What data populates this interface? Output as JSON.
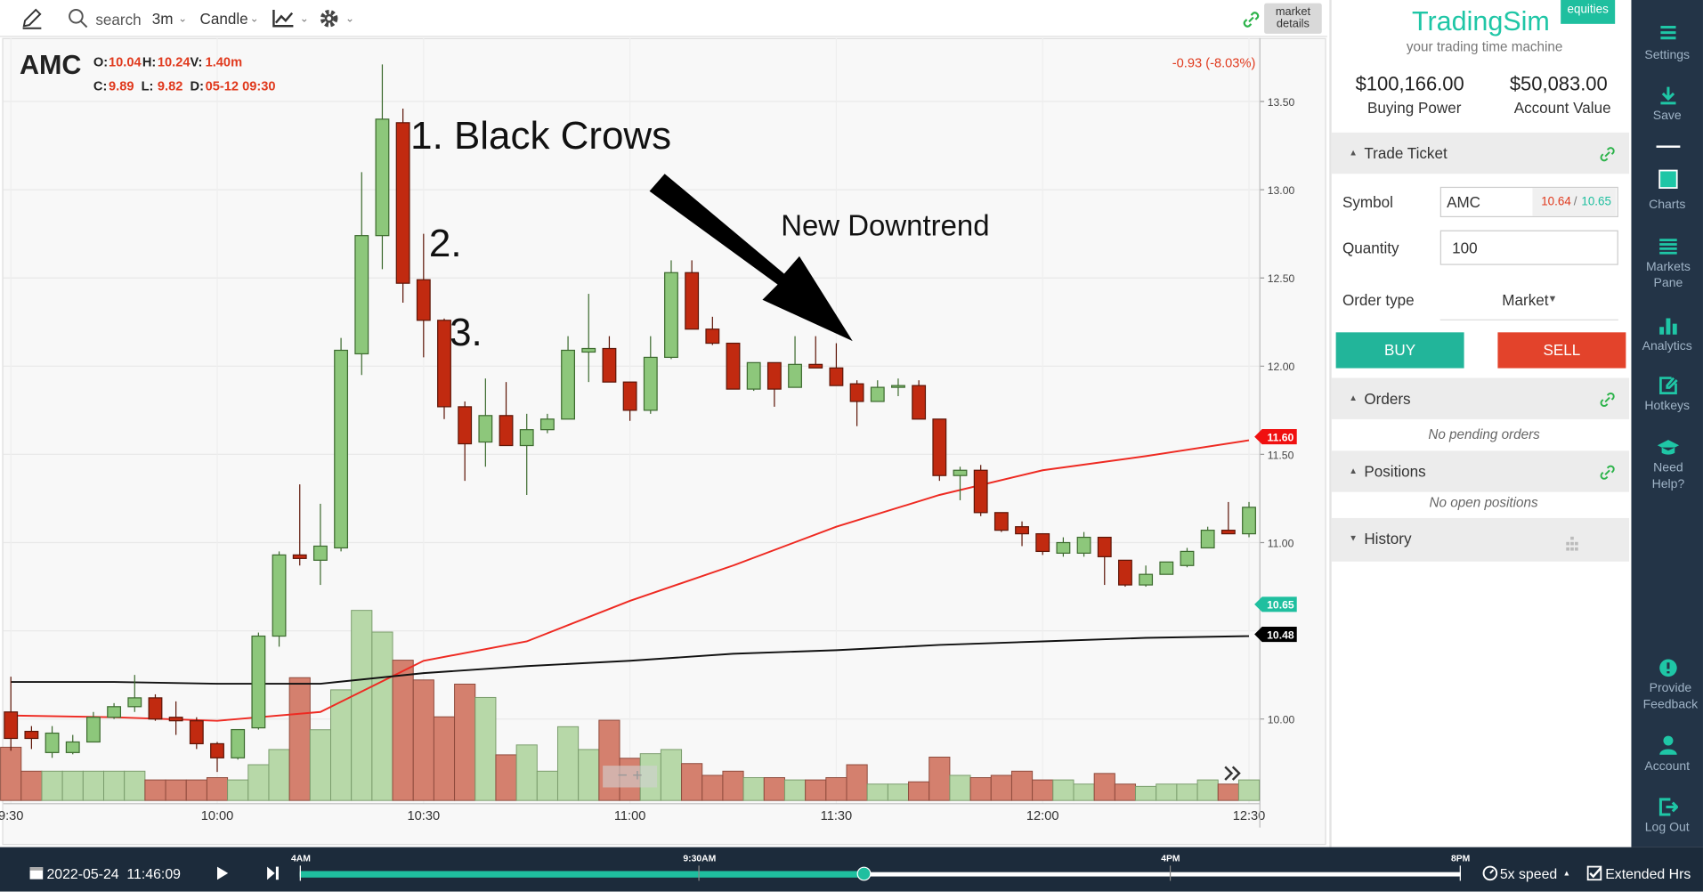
{
  "toolbar": {
    "search": "search",
    "interval": "3m",
    "chart_style": "Candle",
    "market_details": "market details"
  },
  "chart_data": {
    "type": "candlestick",
    "symbol": "AMC",
    "header": {
      "open_label": "O:",
      "high_label": "H:",
      "volume_label": "V:",
      "volume": "1.40m",
      "close_label": "C:",
      "low_label": "L:",
      "date_label": "D:",
      "date": "05-12 09:30"
    },
    "change": "-0.93 (-8.03%)",
    "annotations": [
      "1. Black Crows",
      "2.",
      "3.",
      "New Downtrend"
    ],
    "categories": [
      "09:30",
      "09:33",
      "09:36",
      "09:39",
      "09:42",
      "09:45",
      "09:48",
      "09:51",
      "09:54",
      "09:57",
      "10:00",
      "10:03",
      "10:06",
      "10:09",
      "10:12",
      "10:15",
      "10:18",
      "10:21",
      "10:24",
      "10:27",
      "10:30",
      "10:33",
      "10:36",
      "10:39",
      "10:42",
      "10:45",
      "10:48",
      "10:51",
      "10:54",
      "10:57",
      "11:00",
      "11:03",
      "11:06",
      "11:09",
      "11:12",
      "11:15",
      "11:18",
      "11:21",
      "11:24",
      "11:27",
      "11:30",
      "11:33",
      "11:36",
      "11:39",
      "11:42",
      "11:45",
      "11:48",
      "11:51",
      "11:54",
      "11:57",
      "12:00",
      "12:03",
      "12:06",
      "12:09",
      "12:12",
      "12:15",
      "12:18",
      "12:21",
      "12:24",
      "12:27",
      "12:30"
    ],
    "open": [
      10.04,
      9.93,
      9.81,
      9.81,
      9.87,
      10.01,
      10.07,
      10.12,
      10.01,
      9.99,
      9.86,
      9.78,
      9.95,
      10.47,
      10.93,
      10.9,
      10.97,
      12.07,
      12.74,
      13.38,
      12.49,
      12.26,
      11.77,
      11.57,
      11.72,
      11.55,
      11.64,
      11.7,
      12.08,
      12.1,
      11.91,
      11.75,
      12.05,
      12.53,
      12.21,
      12.13,
      11.87,
      12.02,
      11.88,
      12.01,
      11.99,
      11.9,
      11.8,
      11.88,
      11.89,
      11.7,
      11.38,
      11.41,
      11.17,
      11.09,
      11.05,
      10.94,
      10.94,
      11.03,
      10.9,
      10.76,
      10.82,
      10.87,
      10.97,
      11.07,
      11.05
    ],
    "high": [
      10.24,
      9.96,
      9.96,
      9.91,
      10.04,
      10.09,
      10.25,
      10.14,
      10.1,
      10.01,
      9.87,
      9.94,
      10.49,
      10.95,
      11.33,
      11.22,
      12.16,
      13.1,
      13.71,
      13.46,
      12.75,
      12.27,
      11.8,
      11.93,
      11.91,
      11.73,
      11.73,
      12.17,
      12.41,
      12.17,
      11.91,
      12.17,
      12.6,
      12.6,
      12.28,
      12.13,
      12.02,
      12.02,
      12.17,
      12.17,
      12.13,
      11.92,
      11.92,
      11.93,
      11.92,
      11.7,
      11.43,
      11.44,
      11.17,
      11.12,
      11.05,
      11.03,
      11.06,
      11.03,
      10.9,
      10.87,
      10.89,
      10.97,
      11.09,
      11.23,
      11.23
    ],
    "low": [
      9.82,
      9.83,
      9.78,
      9.8,
      9.87,
      10.0,
      10.04,
      9.99,
      9.91,
      9.83,
      9.7,
      9.77,
      9.94,
      10.41,
      10.87,
      10.76,
      10.95,
      11.95,
      12.55,
      12.36,
      12.05,
      11.7,
      11.35,
      11.43,
      11.55,
      11.27,
      11.62,
      11.7,
      11.91,
      11.91,
      11.69,
      11.73,
      12.04,
      12.21,
      12.12,
      11.87,
      11.86,
      11.77,
      11.88,
      11.99,
      11.89,
      11.66,
      11.8,
      11.83,
      11.7,
      11.35,
      11.24,
      11.15,
      11.06,
      10.98,
      10.93,
      10.92,
      10.92,
      10.76,
      10.75,
      10.75,
      10.82,
      10.86,
      10.97,
      11.05,
      11.03
    ],
    "close": [
      9.89,
      9.89,
      9.92,
      9.87,
      10.01,
      10.07,
      10.12,
      10.0,
      9.99,
      9.86,
      9.78,
      9.94,
      10.47,
      10.93,
      10.91,
      10.98,
      12.09,
      12.74,
      13.4,
      12.47,
      12.26,
      11.77,
      11.56,
      11.72,
      11.55,
      11.64,
      11.7,
      12.09,
      12.1,
      11.91,
      11.75,
      12.05,
      12.53,
      12.21,
      12.13,
      11.87,
      12.02,
      11.87,
      12.01,
      11.99,
      11.89,
      11.8,
      11.88,
      11.89,
      11.7,
      11.38,
      11.41,
      11.17,
      11.07,
      11.05,
      10.95,
      11.0,
      11.03,
      10.92,
      10.76,
      10.82,
      10.89,
      10.95,
      11.07,
      11.05,
      11.2
    ],
    "volume": [
      1.4,
      0.77,
      0.77,
      0.77,
      0.77,
      0.77,
      0.77,
      0.54,
      0.54,
      0.54,
      0.6,
      0.54,
      0.94,
      1.34,
      3.23,
      1.86,
      2.91,
      5.0,
      4.43,
      3.69,
      3.17,
      2.2,
      3.06,
      2.71,
      1.2,
      1.46,
      0.77,
      1.94,
      1.34,
      2.11,
      1.11,
      1.23,
      1.34,
      0.97,
      0.66,
      0.77,
      0.6,
      0.6,
      0.54,
      0.54,
      0.6,
      0.94,
      0.43,
      0.43,
      0.49,
      1.14,
      0.66,
      0.6,
      0.66,
      0.77,
      0.54,
      0.54,
      0.43,
      0.71,
      0.43,
      0.37,
      0.43,
      0.43,
      0.54,
      0.43,
      0.54
    ],
    "up_color": "#8dc77b",
    "down_color": "#c12a10",
    "volume_up_color": "#b7d8a8",
    "volume_down_color": "#d4806e",
    "moving_averages": [
      {
        "color": "#ee2a22",
        "categories": [
          "09:30",
          "09:45",
          "10:00",
          "10:15",
          "10:30",
          "10:45",
          "11:00",
          "11:15",
          "11:30",
          "11:45",
          "12:00",
          "12:15",
          "12:30"
        ],
        "values": [
          10.02,
          10.01,
          9.99,
          10.04,
          10.33,
          10.44,
          10.67,
          10.87,
          11.09,
          11.27,
          11.41,
          11.49,
          11.58
        ]
      },
      {
        "color": "#111111",
        "categories": [
          "09:30",
          "09:45",
          "10:00",
          "10:15",
          "10:30",
          "10:45",
          "11:00",
          "11:15",
          "11:30",
          "11:45",
          "12:00",
          "12:15",
          "12:30"
        ],
        "values": [
          10.21,
          10.21,
          10.2,
          10.2,
          10.26,
          10.3,
          10.33,
          10.37,
          10.39,
          10.42,
          10.44,
          10.46,
          10.47
        ]
      }
    ],
    "price_tags": [
      {
        "value": 11.6,
        "label": "11.60",
        "color": "#f01010"
      },
      {
        "value": 10.65,
        "label": "10.65",
        "color": "#1fbf9f"
      },
      {
        "value": 10.48,
        "label": "10.48",
        "color": "#000000"
      }
    ],
    "ylim": [
      9.52,
      13.86
    ],
    "yticks": [
      {
        "value": 10,
        "label": "10.00"
      },
      {
        "value": 10.5,
        "label": "10.50"
      },
      {
        "value": 11,
        "label": "11.00"
      },
      {
        "value": 11.5,
        "label": "11.50"
      },
      {
        "value": 12,
        "label": "12.00"
      },
      {
        "value": 12.5,
        "label": "12.50"
      },
      {
        "value": 13,
        "label": "13.00"
      },
      {
        "value": 13.5,
        "label": "13.50"
      }
    ],
    "xticks": [
      {
        "value": "09:30",
        "label": "9:30"
      },
      {
        "value": "10:00",
        "label": "10:00"
      },
      {
        "value": "10:30",
        "label": "10:30"
      },
      {
        "value": "11:00",
        "label": "11:00"
      },
      {
        "value": "11:30",
        "label": "11:30"
      },
      {
        "value": "12:00",
        "label": "12:00"
      },
      {
        "value": "12:30",
        "label": "12:30"
      }
    ],
    "grid": true
  },
  "sidebar": {
    "brand": "TradingSim",
    "badge": "equities",
    "tagline": "your trading time machine",
    "buying_power": "$100,166.00",
    "buying_power_label": "Buying Power",
    "account_value": "$50,083.00",
    "account_value_label": "Account Value",
    "trade_ticket": "Trade Ticket",
    "symbol_label": "Symbol",
    "symbol": "AMC",
    "bid": "10.64",
    "separator": "/",
    "ask": "10.65",
    "quantity_label": "Quantity",
    "quantity": "100",
    "order_type_label": "Order type",
    "order_type": "Market",
    "buy": "BUY",
    "sell": "SELL",
    "orders": "Orders",
    "orders_empty": "No pending orders",
    "positions": "Positions",
    "positions_empty": "No open positions",
    "history": "History"
  },
  "nav": [
    "Settings",
    "Save",
    "Charts",
    "Markets Pane",
    "Analytics",
    "Hotkeys",
    "Need Help?",
    "Provide Feedback",
    "Account",
    "Log Out"
  ],
  "playback": {
    "datetime": "2022-05-24  11:46:09",
    "marks": [
      "4AM",
      "9:30AM",
      "4PM",
      "8PM"
    ],
    "speed": "5x speed",
    "extended": "Extended Hrs"
  }
}
